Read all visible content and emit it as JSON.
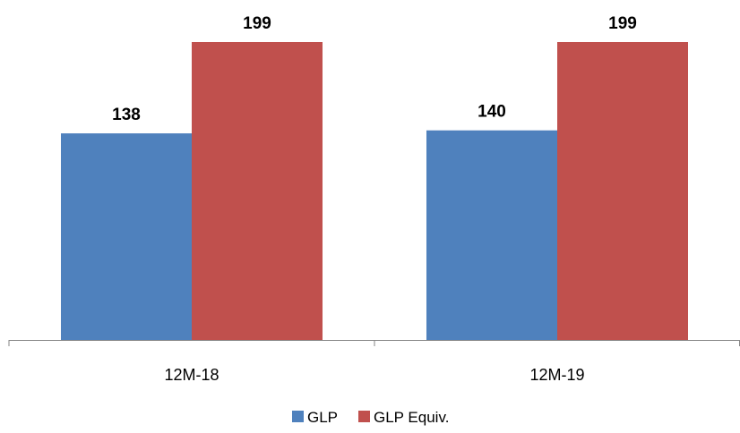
{
  "chart_data": {
    "type": "bar",
    "categories": [
      "12M-18",
      "12M-19"
    ],
    "series": [
      {
        "name": "GLP",
        "values": [
          138,
          140
        ],
        "color": "#4F81BD"
      },
      {
        "name": "GLP Equiv.",
        "values": [
          199,
          199
        ],
        "color": "#C0504D"
      }
    ],
    "ylim": [
      0,
      199
    ],
    "legend": "bottom",
    "grid": false,
    "data_labels": true,
    "axis_color": "#868686"
  }
}
